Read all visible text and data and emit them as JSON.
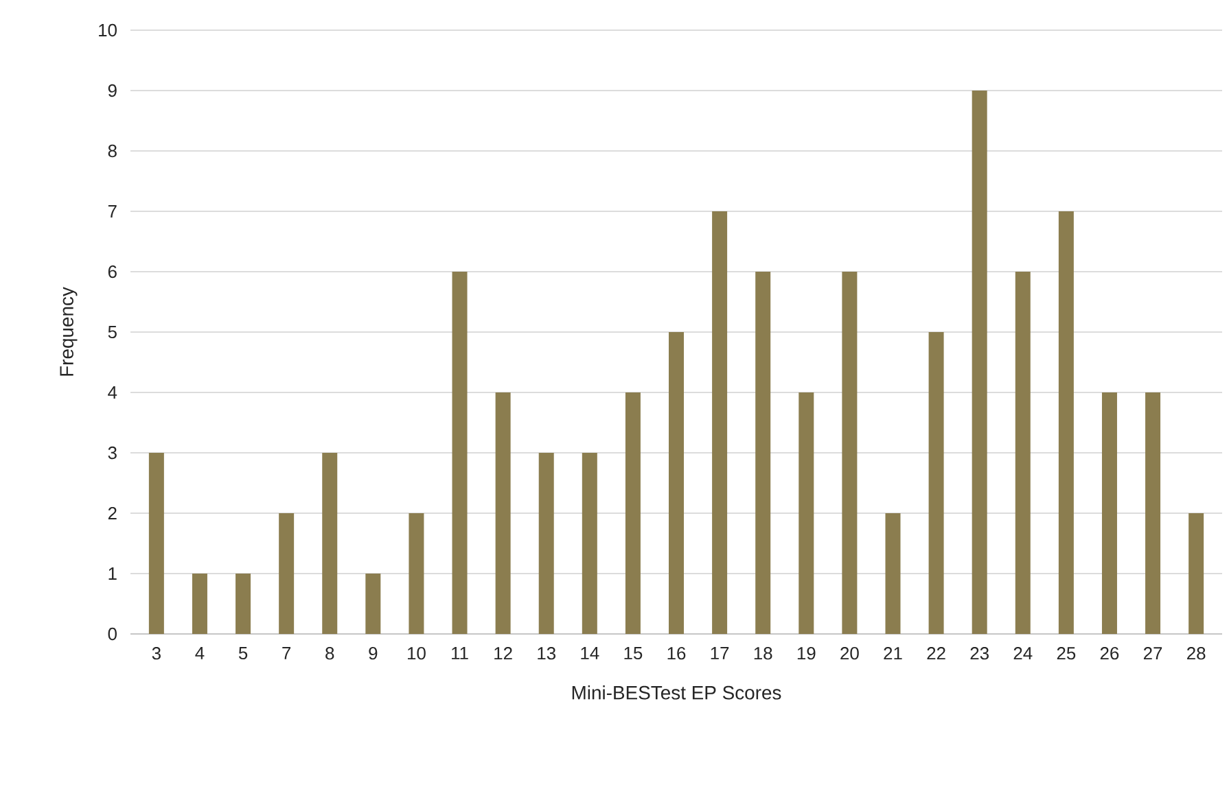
{
  "chart_data": {
    "type": "bar",
    "xlabel": "Mini-BESTest  EP Scores",
    "ylabel": "Frequency",
    "categories": [
      "3",
      "4",
      "5",
      "7",
      "8",
      "9",
      "10",
      "11",
      "12",
      "13",
      "14",
      "15",
      "16",
      "17",
      "18",
      "19",
      "20",
      "21",
      "22",
      "23",
      "24",
      "25",
      "26",
      "27",
      "28"
    ],
    "values": [
      3,
      1,
      1,
      2,
      3,
      1,
      2,
      6,
      4,
      3,
      3,
      4,
      5,
      7,
      6,
      4,
      6,
      2,
      5,
      9,
      6,
      7,
      4,
      4,
      2
    ],
    "color": "#8b7d4f",
    "ylim": [
      0,
      10
    ],
    "yticks": [
      0,
      1,
      2,
      3,
      4,
      5,
      6,
      7,
      8,
      9,
      10
    ],
    "grid": "y"
  }
}
